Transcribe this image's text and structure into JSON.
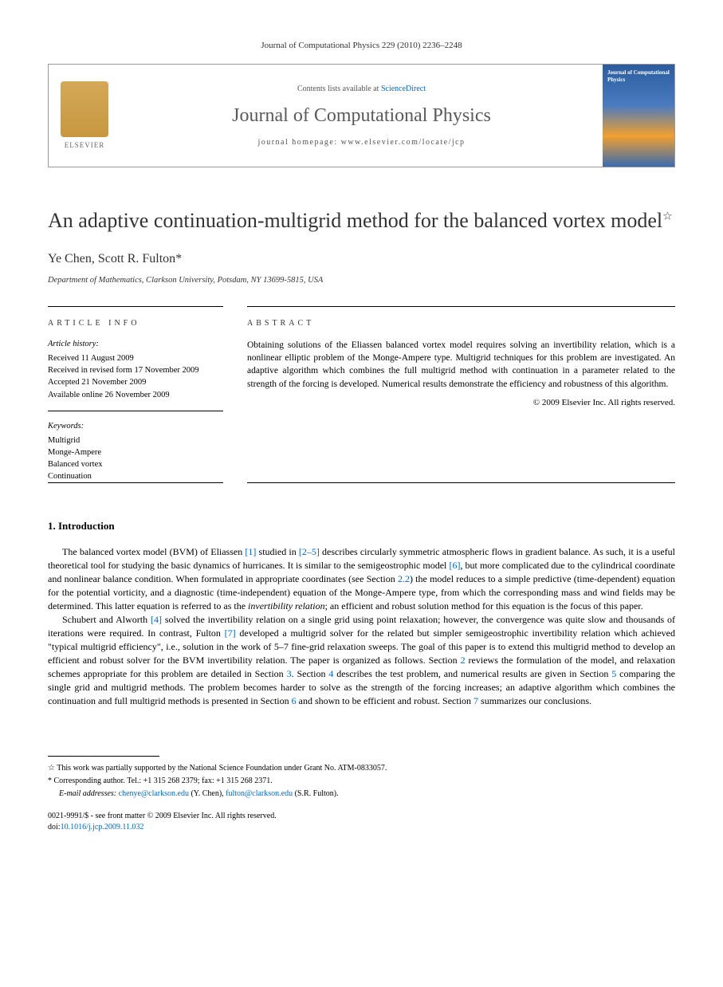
{
  "header": {
    "journal_ref": "Journal of Computational Physics 229 (2010) 2236–2248",
    "contents_prefix": "Contents lists available at ",
    "contents_link": "ScienceDirect",
    "journal_name": "Journal of Computational Physics",
    "homepage_prefix": "journal homepage: ",
    "homepage_url": "www.elsevier.com/locate/jcp",
    "elsevier_label": "ELSEVIER",
    "cover_title": "Journal of Computational Physics"
  },
  "article": {
    "title": "An adaptive continuation-multigrid method for the balanced vortex model",
    "title_star": "☆",
    "authors": "Ye Chen, Scott R. Fulton",
    "author_marker": "*",
    "affiliation": "Department of Mathematics, Clarkson University, Potsdam, NY 13699-5815, USA"
  },
  "info": {
    "header": "ARTICLE INFO",
    "history_label": "Article history:",
    "received": "Received 11 August 2009",
    "revised": "Received in revised form 17 November 2009",
    "accepted": "Accepted 21 November 2009",
    "online": "Available online 26 November 2009",
    "keywords_label": "Keywords:",
    "keywords": [
      "Multigrid",
      "Monge-Ampere",
      "Balanced vortex",
      "Continuation"
    ]
  },
  "abstract": {
    "header": "ABSTRACT",
    "text": "Obtaining solutions of the Eliassen balanced vortex model requires solving an invertibility relation, which is a nonlinear elliptic problem of the Monge-Ampere type. Multigrid techniques for this problem are investigated. An adaptive algorithm which combines the full multigrid method with continuation in a parameter related to the strength of the forcing is developed. Numerical results demonstrate the efficiency and robustness of this algorithm.",
    "copyright": "© 2009 Elsevier Inc. All rights reserved."
  },
  "sections": {
    "intro_title": "1. Introduction",
    "intro_p1_a": "The balanced vortex model (BVM) of Eliassen ",
    "ref1": "[1]",
    "intro_p1_b": " studied in ",
    "ref2_5": "[2–5]",
    "intro_p1_c": " describes circularly symmetric atmospheric flows in gradient balance. As such, it is a useful theoretical tool for studying the basic dynamics of hurricanes. It is similar to the semigeostrophic model ",
    "ref6": "[6]",
    "intro_p1_d": ", but more complicated due to the cylindrical coordinate and nonlinear balance condition. When formulated in appropriate coordinates (see Section ",
    "sec22": "2.2",
    "intro_p1_e": ") the model reduces to a simple predictive (time-dependent) equation for the potential vorticity, and a diagnostic (time-independent) equation of the Monge-Ampere type, from which the corresponding mass and wind fields may be determined. This latter equation is referred to as the ",
    "intro_p1_em": "invertibility relation",
    "intro_p1_f": "; an efficient and robust solution method for this equation is the focus of this paper.",
    "intro_p2_a": "Schubert and Alworth ",
    "ref4": "[4]",
    "intro_p2_b": " solved the invertibility relation on a single grid using point relaxation; however, the convergence was quite slow and thousands of iterations were required. In contrast, Fulton ",
    "ref7": "[7]",
    "intro_p2_c": " developed a multigrid solver for the related but simpler semigeostrophic invertibility relation which achieved \"typical multigrid efficiency\", i.e., solution in the work of 5–7 fine-grid relaxation sweeps. The goal of this paper is to extend this multigrid method to develop an efficient and robust solver for the BVM invertibility relation. The paper is organized as follows. Section ",
    "sec2": "2",
    "intro_p2_d": " reviews the formulation of the model, and relaxation schemes appropriate for this problem are detailed in Section ",
    "sec3": "3",
    "intro_p2_e": ". Section ",
    "sec4": "4",
    "intro_p2_f": " describes the test problem, and numerical results are given in Section ",
    "sec5": "5",
    "intro_p2_g": " comparing the single grid and multigrid methods. The problem becomes harder to solve as the strength of the forcing increases; an adaptive algorithm which combines the continuation and full multigrid methods is presented in Section ",
    "sec6": "6",
    "intro_p2_h": " and shown to be efficient and robust. Section ",
    "sec7": "7",
    "intro_p2_i": " summarizes our conclusions."
  },
  "footnotes": {
    "funding_marker": "☆",
    "funding": "This work was partially supported by the National Science Foundation under Grant No. ATM-0833057.",
    "corr_marker": "*",
    "corr": "Corresponding author. Tel.: +1 315 268 2379; fax: +1 315 268 2371.",
    "email_label": "E-mail addresses:",
    "email1": "chenye@clarkson.edu",
    "email1_name": " (Y. Chen), ",
    "email2": "fulton@clarkson.edu",
    "email2_name": " (S.R. Fulton)."
  },
  "footer": {
    "issn": "0021-9991/$ - see front matter © 2009 Elsevier Inc. All rights reserved.",
    "doi_label": "doi:",
    "doi": "10.1016/j.jcp.2009.11.032"
  },
  "colors": {
    "link": "#0066cc",
    "text": "#000000",
    "header_gray": "#5a5a5a",
    "elsevier_orange": "#d4a857"
  }
}
